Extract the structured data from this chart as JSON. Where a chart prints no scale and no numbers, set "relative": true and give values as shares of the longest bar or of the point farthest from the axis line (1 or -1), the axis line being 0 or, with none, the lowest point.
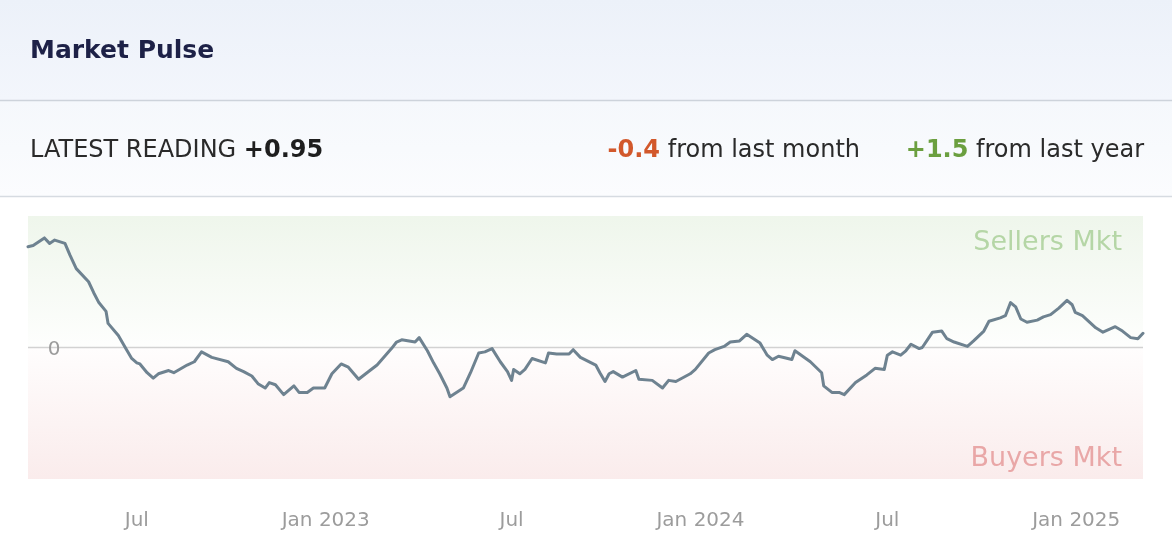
{
  "chart_data": {
    "type": "line",
    "title": "Market Pulse",
    "annotations": [
      "LATEST READING +0.95",
      "-0.4 from last month",
      "+1.5 from last year"
    ],
    "relative": true,
    "x": [
      "2022-03-17",
      "2022-03-22",
      "2022-04-02",
      "2022-04-07",
      "2022-04-12",
      "2022-04-22",
      "2022-04-27",
      "2022-05-03",
      "2022-05-15",
      "2022-05-20",
      "2022-05-25",
      "2022-06-01",
      "2022-06-03",
      "2022-06-13",
      "2022-06-21",
      "2022-06-26",
      "2022-07-01",
      "2022-07-04",
      "2022-07-11",
      "2022-07-17",
      "2022-07-22",
      "2022-08-01",
      "2022-08-06",
      "2022-08-19",
      "2022-08-26",
      "2022-09-02",
      "2022-09-12",
      "2022-09-28",
      "2022-10-06",
      "2022-10-13",
      "2022-10-21",
      "2022-10-27",
      "2022-11-03",
      "2022-11-07",
      "2022-11-13",
      "2022-11-21",
      "2022-12-01",
      "2022-12-06",
      "2022-12-14",
      "2022-12-20",
      "2022-12-31",
      "2023-01-07",
      "2023-01-16",
      "2023-01-23",
      "2023-02-02",
      "2023-02-13",
      "2023-02-20",
      "2023-03-06",
      "2023-03-11",
      "2023-03-16",
      "2023-03-29",
      "2023-04-02",
      "2023-04-10",
      "2023-04-16",
      "2023-04-22",
      "2023-04-29",
      "2023-05-02",
      "2023-05-15",
      "2023-05-22",
      "2023-05-30",
      "2023-06-05",
      "2023-06-12",
      "2023-06-20",
      "2023-06-27",
      "2023-07-01",
      "2023-07-03",
      "2023-07-09",
      "2023-07-14",
      "2023-07-21",
      "2023-08-03",
      "2023-08-06",
      "2023-08-14",
      "2023-08-26",
      "2023-08-30",
      "2023-09-06",
      "2023-09-21",
      "2023-09-25",
      "2023-09-30",
      "2023-10-04",
      "2023-10-08",
      "2023-10-17",
      "2023-10-30",
      "2023-11-02",
      "2023-11-15",
      "2023-11-25",
      "2023-12-01",
      "2023-12-08",
      "2023-12-22",
      "2023-12-27",
      "2024-01-09",
      "2024-01-15",
      "2024-01-24",
      "2024-01-30",
      "2024-02-08",
      "2024-02-15",
      "2024-02-28",
      "2024-03-06",
      "2024-03-11",
      "2024-03-17",
      "2024-03-30",
      "2024-04-02",
      "2024-04-17",
      "2024-04-28",
      "2024-04-30",
      "2024-05-08",
      "2024-05-15",
      "2024-05-20",
      "2024-05-31",
      "2024-06-11",
      "2024-06-19",
      "2024-06-28",
      "2024-07-01",
      "2024-07-06",
      "2024-07-14",
      "2024-07-19",
      "2024-07-24",
      "2024-08-01",
      "2024-08-04",
      "2024-08-09",
      "2024-08-14",
      "2024-08-23",
      "2024-08-28",
      "2024-09-04",
      "2024-09-17",
      "2024-09-23",
      "2024-10-03",
      "2024-10-08",
      "2024-10-19",
      "2024-10-24",
      "2024-10-29",
      "2024-11-03",
      "2024-11-08",
      "2024-11-14",
      "2024-11-24",
      "2024-11-30",
      "2024-12-07",
      "2024-12-15",
      "2024-12-23",
      "2024-12-28",
      "2024-12-31",
      "2025-01-07",
      "2025-01-20",
      "2025-01-27",
      "2025-02-08",
      "2025-02-15",
      "2025-02-23",
      "2025-03-02",
      "2025-03-07"
    ],
    "series": [
      {
        "color": "#6e8290",
        "values": [
          0.92,
          0.93,
          1,
          0.95,
          0.98,
          0.95,
          0.84,
          0.72,
          0.6,
          0.5,
          0.41,
          0.33,
          0.22,
          0.11,
          -0.02,
          -0.1,
          -0.14,
          -0.15,
          -0.23,
          -0.28,
          -0.24,
          -0.21,
          -0.23,
          -0.16,
          -0.13,
          -0.04,
          -0.09,
          -0.13,
          -0.19,
          -0.22,
          -0.26,
          -0.33,
          -0.37,
          -0.32,
          -0.34,
          -0.43,
          -0.35,
          -0.41,
          -0.41,
          -0.37,
          -0.37,
          -0.24,
          -0.15,
          -0.18,
          -0.29,
          -0.21,
          -0.16,
          -0.01,
          0.05,
          0.07,
          0.05,
          0.09,
          -0.03,
          -0.14,
          -0.24,
          -0.37,
          -0.45,
          -0.37,
          -0.23,
          -0.05,
          -0.04,
          -0.01,
          -0.13,
          -0.22,
          -0.3,
          -0.2,
          -0.24,
          -0.2,
          -0.1,
          -0.14,
          -0.05,
          -0.06,
          -0.06,
          -0.02,
          -0.09,
          -0.16,
          -0.23,
          -0.31,
          -0.24,
          -0.22,
          -0.27,
          -0.21,
          -0.29,
          -0.3,
          -0.37,
          -0.3,
          -0.31,
          -0.24,
          -0.2,
          -0.05,
          -0.02,
          0.01,
          0.05,
          0.06,
          0.12,
          0.04,
          -0.07,
          -0.11,
          -0.08,
          -0.11,
          -0.03,
          -0.13,
          -0.23,
          -0.35,
          -0.41,
          -0.41,
          -0.43,
          -0.32,
          -0.25,
          -0.19,
          -0.2,
          -0.07,
          -0.04,
          -0.07,
          -0.03,
          0.03,
          -0.01,
          0,
          0.07,
          0.14,
          0.15,
          0.08,
          0.05,
          0.01,
          0.06,
          0.15,
          0.24,
          0.27,
          0.29,
          0.41,
          0.37,
          0.26,
          0.23,
          0.25,
          0.28,
          0.3,
          0.36,
          0.43,
          0.39,
          0.32,
          0.29,
          0.18,
          0.14,
          0.19,
          0.15,
          0.09,
          0.08,
          0.13
        ]
      }
    ],
    "xlim": [
      "2022-03-17",
      "2025-03-07"
    ],
    "xticks": [
      {
        "value": "2022-07-01",
        "label": "Jul"
      },
      {
        "value": "2023-01-01",
        "label": "Jan 2023"
      },
      {
        "value": "2023-07-01",
        "label": "Jul"
      },
      {
        "value": "2024-01-01",
        "label": "Jan 2024"
      },
      {
        "value": "2024-07-01",
        "label": "Jul"
      },
      {
        "value": "2025-01-01",
        "label": "Jan 2025"
      }
    ],
    "bands": [
      {
        "axis": "y",
        "from": 0,
        "to": 1.2,
        "label": "Sellers Mkt",
        "color": "#b5d6a6"
      },
      {
        "axis": "y",
        "from": -1.2,
        "to": 0,
        "label": "Buyers Mkt",
        "color": "#e9a7a7"
      }
    ],
    "ref_lines": [
      {
        "axis": "y",
        "value": 0,
        "label": "0",
        "color": "#d2d2d2"
      }
    ]
  }
}
